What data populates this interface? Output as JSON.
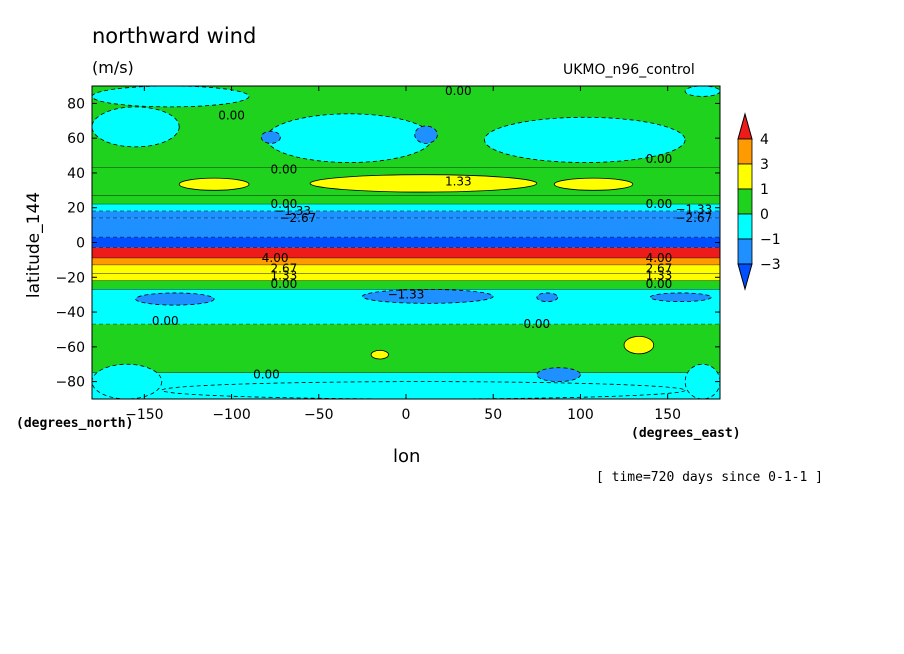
{
  "chart_data": {
    "type": "heatmap",
    "title": "northward wind",
    "units": "(m/s)",
    "run_label": "UKMO_n96_control",
    "xlabel": "lon",
    "ylabel": "latitude_144",
    "x_units_label": "(degrees_east)",
    "y_units_label": "(degrees_north)",
    "time_note": "[ time=720 days since 0-1-1 ]",
    "xlim": [
      -180,
      180
    ],
    "ylim": [
      -90,
      90
    ],
    "x_ticks": [
      -150,
      -100,
      -50,
      0,
      50,
      100,
      150
    ],
    "x_tick_labels": [
      "−150",
      "−100",
      "−50",
      "0",
      "50",
      "100",
      "150"
    ],
    "y_ticks": [
      80,
      60,
      40,
      20,
      0,
      -20,
      -40,
      -60,
      -80
    ],
    "y_tick_labels": [
      "80",
      "60",
      "40",
      "20",
      "0",
      "−20",
      "−40",
      "−60",
      "−80"
    ],
    "colorbar": {
      "levels": [
        4,
        3,
        1,
        0,
        -1,
        -3
      ],
      "labels": [
        "4",
        "3",
        "1",
        "0",
        "−1",
        "−3"
      ],
      "colors": [
        "#ee1b1b",
        "#ff9a00",
        "#ffff00",
        "#1ed21e",
        "#00ffff",
        "#1e90ff",
        "#0050ff"
      ]
    },
    "zonal_bands": [
      {
        "lat_from": 90,
        "lat_to": 43,
        "value": 0.3
      },
      {
        "lat_from": 43,
        "lat_to": 27,
        "value": 0.8
      },
      {
        "lat_from": 27,
        "lat_to": 22,
        "value": 0.3
      },
      {
        "lat_from": 22,
        "lat_to": 18,
        "value": -0.5
      },
      {
        "lat_from": 18,
        "lat_to": 14,
        "value": -1.5
      },
      {
        "lat_from": 14,
        "lat_to": 3,
        "value": -2.5
      },
      {
        "lat_from": 3,
        "lat_to": -3,
        "value": -3.5
      },
      {
        "lat_from": -3,
        "lat_to": -9,
        "value": 4.5
      },
      {
        "lat_from": -9,
        "lat_to": -13,
        "value": 3.5
      },
      {
        "lat_from": -13,
        "lat_to": -18,
        "value": 2.0
      },
      {
        "lat_from": -18,
        "lat_to": -22,
        "value": 1.5
      },
      {
        "lat_from": -22,
        "lat_to": -27,
        "value": 0.5
      },
      {
        "lat_from": -27,
        "lat_to": -47,
        "value": -0.5
      },
      {
        "lat_from": -47,
        "lat_to": -75,
        "value": 0.3
      },
      {
        "lat_from": -75,
        "lat_to": -90,
        "value": -0.5
      }
    ],
    "patches": [
      {
        "lon": [
          -180,
          -90
        ],
        "lat": [
          90,
          78
        ],
        "value": -0.5
      },
      {
        "lon": [
          160,
          180
        ],
        "lat": [
          90,
          84
        ],
        "value": -0.5
      },
      {
        "lon": [
          -180,
          -130
        ],
        "lat": [
          78,
          55
        ],
        "value": -0.5
      },
      {
        "lon": [
          -80,
          15
        ],
        "lat": [
          74,
          46
        ],
        "value": -0.5
      },
      {
        "lon": [
          45,
          160
        ],
        "lat": [
          72,
          46
        ],
        "value": -0.5
      },
      {
        "lon": [
          -83,
          -72
        ],
        "lat": [
          64,
          57
        ],
        "value": -1.5
      },
      {
        "lon": [
          5,
          18
        ],
        "lat": [
          67,
          57
        ],
        "value": -1.5
      },
      {
        "lon": [
          -130,
          -90
        ],
        "lat": [
          37,
          30
        ],
        "value": 1.5
      },
      {
        "lon": [
          -55,
          75
        ],
        "lat": [
          39,
          29
        ],
        "value": 1.5
      },
      {
        "lon": [
          85,
          130
        ],
        "lat": [
          37,
          30
        ],
        "value": 1.5
      },
      {
        "lon": [
          -155,
          -110
        ],
        "lat": [
          -29,
          -36
        ],
        "value": -1.5
      },
      {
        "lon": [
          -25,
          50
        ],
        "lat": [
          -27,
          -35
        ],
        "value": -1.5
      },
      {
        "lon": [
          75,
          87
        ],
        "lat": [
          -29,
          -34
        ],
        "value": -1.5
      },
      {
        "lon": [
          140,
          175
        ],
        "lat": [
          -29,
          -34
        ],
        "value": -1.5
      },
      {
        "lon": [
          -180,
          -140
        ],
        "lat": [
          -70,
          -90
        ],
        "value": -0.5
      },
      {
        "lon": [
          -140,
          160
        ],
        "lat": [
          -80,
          -90
        ],
        "value": -0.5
      },
      {
        "lon": [
          160,
          180
        ],
        "lat": [
          -70,
          -90
        ],
        "value": -0.5
      },
      {
        "lon": [
          -20,
          -10
        ],
        "lat": [
          -62,
          -67
        ],
        "value": 1.5
      },
      {
        "lon": [
          125,
          142
        ],
        "lat": [
          -54,
          -64
        ],
        "value": 1.5
      },
      {
        "lon": [
          75,
          100
        ],
        "lat": [
          -72,
          -80
        ],
        "value": -1.5
      }
    ],
    "contour_labels": [
      {
        "text": "0.00",
        "lon": 30,
        "lat": 87
      },
      {
        "text": "0.00",
        "lon": -100,
        "lat": 73
      },
      {
        "text": "0.00",
        "lon": 145,
        "lat": 48
      },
      {
        "text": "0.00",
        "lon": -70,
        "lat": 42
      },
      {
        "text": "1.33",
        "lon": 30,
        "lat": 35
      },
      {
        "text": "0.00",
        "lon": -70,
        "lat": 22
      },
      {
        "text": "−1.33",
        "lon": -65,
        "lat": 18
      },
      {
        "text": "−2.67",
        "lon": -62,
        "lat": 14
      },
      {
        "text": "−2.67",
        "lon": 165,
        "lat": 14
      },
      {
        "text": "−1.33",
        "lon": 165,
        "lat": 19
      },
      {
        "text": "0.00",
        "lon": 145,
        "lat": 22
      },
      {
        "text": "4.00",
        "lon": -75,
        "lat": -9
      },
      {
        "text": "4.00",
        "lon": 145,
        "lat": -9
      },
      {
        "text": "2.67",
        "lon": -70,
        "lat": -15
      },
      {
        "text": "2.67",
        "lon": 145,
        "lat": -15
      },
      {
        "text": "1.33",
        "lon": -70,
        "lat": -19
      },
      {
        "text": "1.33",
        "lon": 145,
        "lat": -19
      },
      {
        "text": "0.00",
        "lon": -70,
        "lat": -24
      },
      {
        "text": "0.00",
        "lon": 145,
        "lat": -24
      },
      {
        "text": "−1.33",
        "lon": 0,
        "lat": -30
      },
      {
        "text": "0.00",
        "lon": -138,
        "lat": -45
      },
      {
        "text": "0.00",
        "lon": 75,
        "lat": -47
      },
      {
        "text": "0.00",
        "lon": -80,
        "lat": -76
      }
    ]
  }
}
